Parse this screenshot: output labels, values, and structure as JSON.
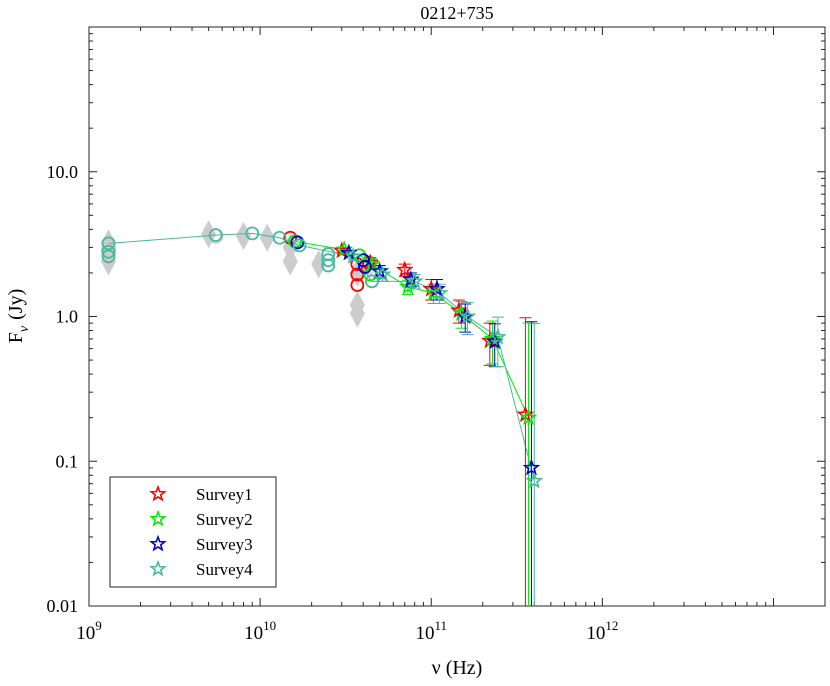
{
  "chart_data": {
    "type": "scatter",
    "title": "0212+735",
    "xlabel": "ν (Hz)",
    "ylabel_main": "F",
    "ylabel_sub": "ν",
    "ylabel_unit": "(Jy)",
    "x_scale": "log",
    "y_scale": "log",
    "xlim": [
      1000000000,
      20000000000000
    ],
    "ylim": [
      0.01,
      100
    ],
    "x_ticks": [
      {
        "value": 1000000000,
        "base": "10",
        "exp": "9"
      },
      {
        "value": 10000000000,
        "base": "10",
        "exp": "10"
      },
      {
        "value": 100000000000,
        "base": "10",
        "exp": "11"
      },
      {
        "value": 1000000000000,
        "base": "10",
        "exp": "12"
      }
    ],
    "y_ticks": [
      {
        "value": 0.01,
        "label": "0.01"
      },
      {
        "value": 0.1,
        "label": "0.1"
      },
      {
        "value": 1,
        "label": "1.0"
      },
      {
        "value": 10,
        "label": "10.0"
      }
    ],
    "legend_position": "bottom-left",
    "archival": {
      "color": "#cccccc",
      "diamonds": [
        [
          1300000000,
          2.7
        ],
        [
          1300000000,
          3.2
        ],
        [
          1300000000,
          2.4
        ],
        [
          5000000000,
          3.7
        ],
        [
          8000000000,
          3.6
        ],
        [
          11000000000,
          3.5
        ],
        [
          15000000000,
          2.4
        ],
        [
          15000000000,
          3.0
        ],
        [
          22000000000,
          2.3
        ],
        [
          37000000000,
          2.0
        ],
        [
          37000000000,
          1.2
        ],
        [
          37000000000,
          1.05
        ]
      ],
      "circles": [
        [
          1300000000,
          2.9
        ],
        [
          5500000000,
          3.6
        ],
        [
          43000000000,
          2.2
        ]
      ]
    },
    "series": [
      {
        "name": "Survey1",
        "color": "#ff0000",
        "circles": [
          [
            15000000000,
            3.5
          ],
          [
            37000000000,
            2.3
          ],
          [
            37000000000,
            1.95
          ],
          [
            37000000000,
            1.65
          ],
          [
            43000000000,
            2.35
          ]
        ],
        "stars": [
          {
            "x": 30000000000,
            "y": 2.85,
            "err": 0.1
          },
          {
            "x": 44000000000,
            "y": 2.35,
            "err": 0.2
          },
          {
            "x": 70000000000,
            "y": 2.1,
            "err": 0.2
          },
          {
            "x": 100000000000,
            "y": 1.55,
            "err": 0.25
          },
          {
            "x": 145000000000,
            "y": 1.1,
            "err": 0.2
          },
          {
            "x": 220000000000,
            "y": 0.68,
            "err": 0.22
          },
          {
            "x": 355000000000,
            "y": 0.21,
            "err": 0.77
          }
        ],
        "line": []
      },
      {
        "name": "Survey2",
        "color": "#00ee00",
        "circles": [
          [
            16000000000,
            3.3
          ],
          [
            38000000000,
            2.65
          ],
          [
            44000000000,
            1.95
          ]
        ],
        "stars": [
          {
            "x": 31000000000,
            "y": 2.9,
            "err": 0.1
          },
          {
            "x": 45000000000,
            "y": 2.3,
            "err": 0.2
          },
          {
            "x": 73000000000,
            "y": 1.6,
            "err": 0.18
          },
          {
            "x": 103000000000,
            "y": 1.45,
            "err": 0.22
          },
          {
            "x": 150000000000,
            "y": 1.05,
            "err": 0.22
          },
          {
            "x": 228000000000,
            "y": 0.7,
            "err": 0.23
          },
          {
            "x": 370000000000,
            "y": 0.2,
            "err": 0.7
          }
        ],
        "line": [
          [
            16000000000,
            3.3
          ],
          [
            31000000000,
            2.9
          ],
          [
            38000000000,
            2.65
          ],
          [
            45000000000,
            2.3
          ],
          [
            73000000000,
            1.6
          ],
          [
            103000000000,
            1.45
          ],
          [
            150000000000,
            1.05
          ],
          [
            228000000000,
            0.7
          ],
          [
            370000000000,
            0.2
          ]
        ]
      },
      {
        "name": "Survey3",
        "color": "#0000cc",
        "circles": [
          [
            16500000000,
            3.25
          ],
          [
            40000000000,
            2.45
          ],
          [
            41000000000,
            2.2
          ]
        ],
        "stars": [
          {
            "x": 33000000000,
            "y": 2.75,
            "err": 0.1
          },
          {
            "x": 50000000000,
            "y": 2.05,
            "err": 0.2
          },
          {
            "x": 76000000000,
            "y": 1.8,
            "err": 0.2
          },
          {
            "x": 108000000000,
            "y": 1.55,
            "err": 0.25
          },
          {
            "x": 158000000000,
            "y": 1.0,
            "err": 0.22
          },
          {
            "x": 235000000000,
            "y": 0.67,
            "err": 0.22
          },
          {
            "x": 385000000000,
            "y": 0.09,
            "err": 0.83
          }
        ],
        "line": []
      },
      {
        "name": "Survey4",
        "color": "#44bb99",
        "circles": [
          [
            1300000000,
            3.2
          ],
          [
            1300000000,
            2.8
          ],
          [
            1300000000,
            2.6
          ],
          [
            5500000000,
            3.65
          ],
          [
            9000000000,
            3.75
          ],
          [
            13000000000,
            3.5
          ],
          [
            17000000000,
            3.1
          ],
          [
            25000000000,
            2.7
          ],
          [
            25000000000,
            2.45
          ],
          [
            25000000000,
            2.25
          ],
          [
            45000000000,
            1.75
          ]
        ],
        "stars": [
          {
            "x": 35000000000,
            "y": 2.6,
            "err": 0.1
          },
          {
            "x": 52000000000,
            "y": 1.95,
            "err": 0.2
          },
          {
            "x": 80000000000,
            "y": 1.75,
            "err": 0.2
          },
          {
            "x": 112000000000,
            "y": 1.45,
            "err": 0.22
          },
          {
            "x": 163000000000,
            "y": 1.0,
            "err": 0.25
          },
          {
            "x": 245000000000,
            "y": 0.72,
            "err": 0.27
          },
          {
            "x": 400000000000,
            "y": 0.073,
            "err": 0.82
          }
        ],
        "line": [
          [
            1300000000,
            3.2
          ],
          [
            5500000000,
            3.65
          ],
          [
            9000000000,
            3.75
          ],
          [
            13000000000,
            3.5
          ],
          [
            17000000000,
            3.1
          ],
          [
            35000000000,
            2.6
          ],
          [
            45000000000,
            1.75
          ],
          [
            80000000000,
            1.75
          ],
          [
            112000000000,
            1.45
          ],
          [
            163000000000,
            1.0
          ],
          [
            245000000000,
            0.72
          ],
          [
            400000000000,
            0.073
          ]
        ]
      }
    ]
  }
}
